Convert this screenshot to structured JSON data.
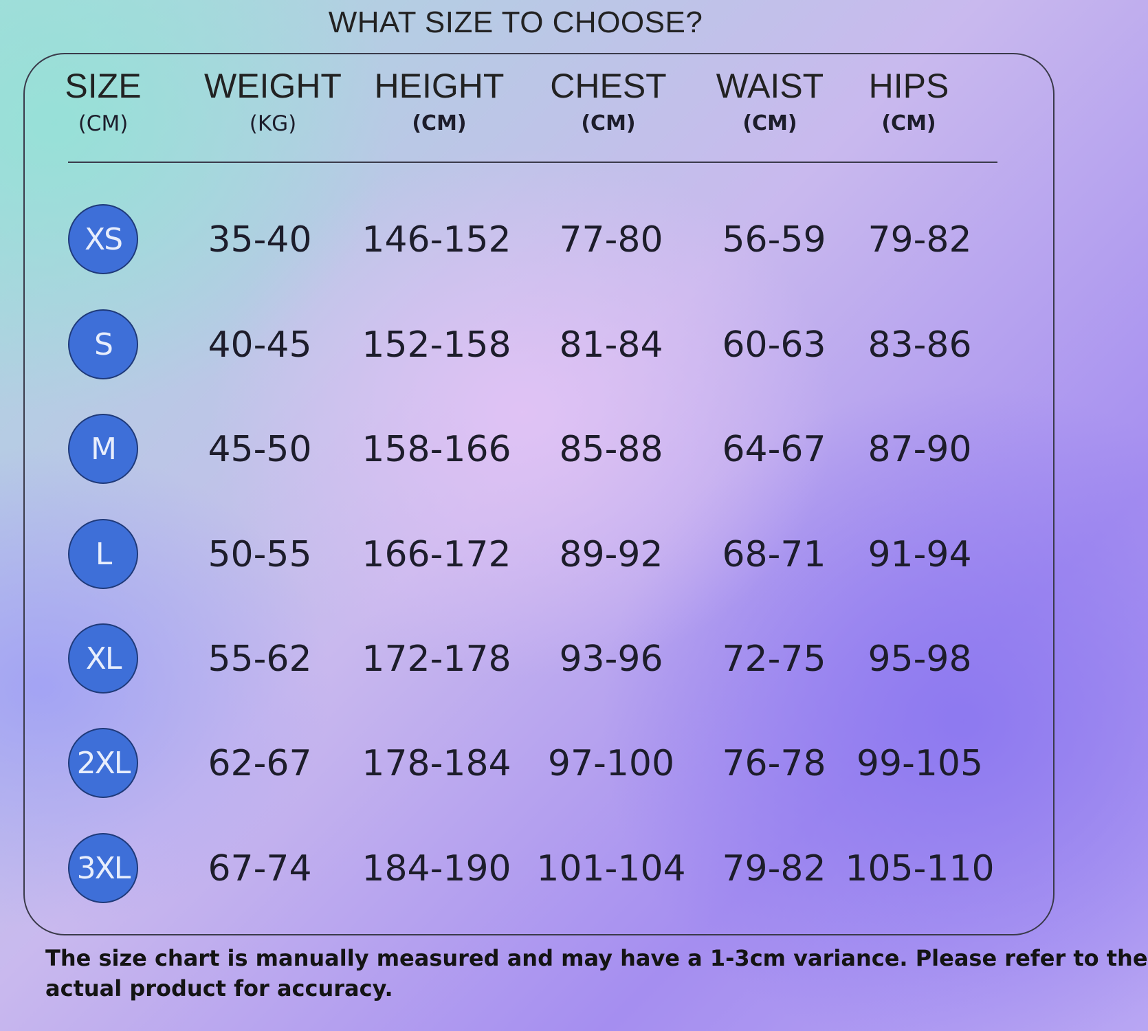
{
  "title": "WHAT SIZE TO CHOOSE?",
  "headers": [
    {
      "label": "SIZE",
      "unit": "(CM)"
    },
    {
      "label": "WEIGHT",
      "unit": "(KG)"
    },
    {
      "label": "HEIGHT",
      "unit": "(CM)"
    },
    {
      "label": "CHEST",
      "unit": "(CM)"
    },
    {
      "label": "WAIST",
      "unit": "(CM)"
    },
    {
      "label": "HIPS",
      "unit": "(CM)"
    }
  ],
  "rows": [
    {
      "size": "XS",
      "weight": "35-40",
      "height": "146-152",
      "chest": "77-80",
      "waist": "56-59",
      "hips": "79-82"
    },
    {
      "size": "S",
      "weight": "40-45",
      "height": "152-158",
      "chest": "81-84",
      "waist": "60-63",
      "hips": "83-86"
    },
    {
      "size": "M",
      "weight": "45-50",
      "height": "158-166",
      "chest": "85-88",
      "waist": "64-67",
      "hips": "87-90"
    },
    {
      "size": "L",
      "weight": "50-55",
      "height": "166-172",
      "chest": "89-92",
      "waist": "68-71",
      "hips": "91-94"
    },
    {
      "size": "XL",
      "weight": "55-62",
      "height": "172-178",
      "chest": "93-96",
      "waist": "72-75",
      "hips": "95-98"
    },
    {
      "size": "2XL",
      "weight": "62-67",
      "height": "178-184",
      "chest": "97-100",
      "waist": "76-78",
      "hips": "99-105"
    },
    {
      "size": "3XL",
      "weight": "67-74",
      "height": "184-190",
      "chest": "101-104",
      "waist": "79-82",
      "hips": "105-110"
    }
  ],
  "note": {
    "line1": "The size chart is manually measured and may have a 1-3cm variance. Please refer to the",
    "line2": "actual product for accuracy."
  },
  "colors": {
    "badge": "#3e6fd8",
    "badge_text": "#e8eefc"
  }
}
